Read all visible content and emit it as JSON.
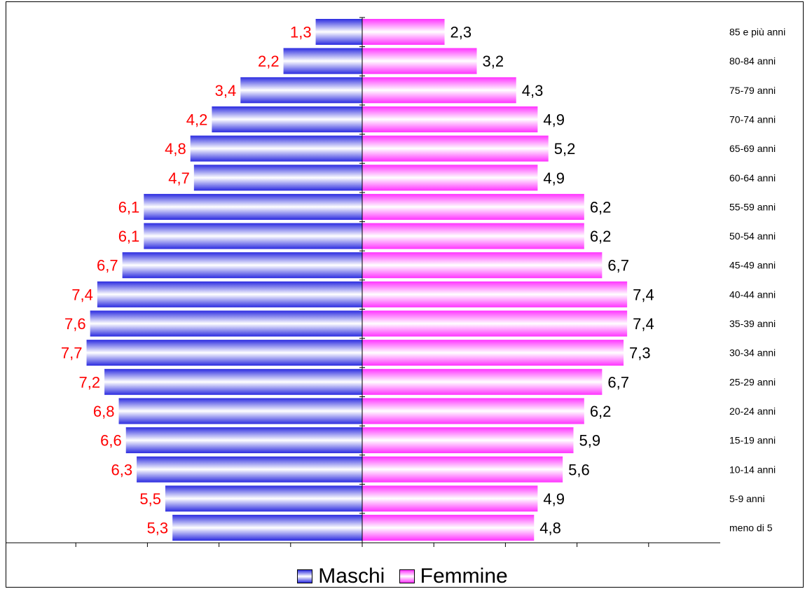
{
  "chart_data": {
    "type": "bar",
    "orientation": "horizontal",
    "categories": [
      "85 e più anni",
      "80-84 anni",
      "75-79 anni",
      "70-74 anni",
      "65-69 anni",
      "60-64 anni",
      "55-59 anni",
      "50-54 anni",
      "45-49 anni",
      "40-44 anni",
      "35-39 anni",
      "30-34 anni",
      "25-29 anni",
      "20-24 anni",
      "15-19 anni",
      "10-14 anni",
      "5-9 anni",
      "meno di 5"
    ],
    "series": [
      {
        "name": "Maschi",
        "values": [
          1.3,
          2.2,
          3.4,
          4.2,
          4.8,
          4.7,
          6.1,
          6.1,
          6.7,
          7.4,
          7.6,
          7.7,
          7.2,
          6.8,
          6.6,
          6.3,
          5.5,
          5.3
        ],
        "labels": [
          "1,3",
          "2,2",
          "3,4",
          "4,2",
          "4,8",
          "4,7",
          "6,1",
          "6,1",
          "6,7",
          "7,4",
          "7,6",
          "7,7",
          "7,2",
          "6,8",
          "6,6",
          "6,3",
          "5,5",
          "5,3"
        ],
        "color": "#2b2be0",
        "label_color": "#ff0000"
      },
      {
        "name": "Femmine",
        "values": [
          2.3,
          3.2,
          4.3,
          4.9,
          5.2,
          4.9,
          6.2,
          6.2,
          6.7,
          7.4,
          7.4,
          7.3,
          6.7,
          6.2,
          5.9,
          5.6,
          4.9,
          4.8
        ],
        "labels": [
          "2,3",
          "3,2",
          "4,3",
          "4,9",
          "5,2",
          "4,9",
          "6,2",
          "6,2",
          "6,7",
          "7,4",
          "7,4",
          "7,3",
          "6,7",
          "6,2",
          "5,9",
          "5,6",
          "4,9",
          "4,8"
        ],
        "color": "#ff33ff",
        "label_color": "#000000"
      }
    ],
    "xlim": [
      -8,
      8
    ],
    "legend_position": "bottom",
    "category_axis_side": "right",
    "grid": false
  },
  "legend": {
    "maschi": "Maschi",
    "femmine": "Femmine"
  }
}
